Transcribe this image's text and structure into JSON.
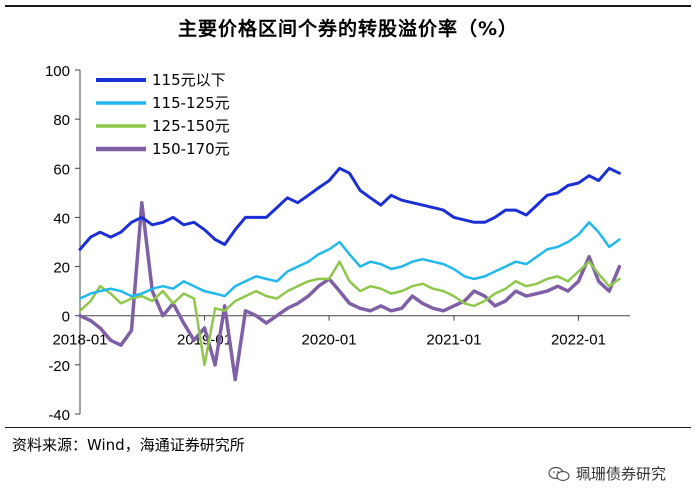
{
  "title": "主要价格区间个券的转股溢价率（%）",
  "source": "资料来源：Wind，海通证券研究所",
  "watermark": "珮珊债券研究",
  "chart_data": {
    "type": "line",
    "title": "主要价格区间个券的转股溢价率（%）",
    "xlabel": "",
    "ylabel": "",
    "ylim": [
      -40,
      100
    ],
    "yticks": [
      -40,
      -20,
      0,
      20,
      40,
      60,
      80,
      100
    ],
    "xlim": [
      "2018-01-01",
      "2022-06-01"
    ],
    "xtick_labels": [
      "2018-01",
      "2019-01",
      "2020-01",
      "2021-01",
      "2022-01"
    ],
    "xtick_dates": [
      "2018-01-01",
      "2019-01-01",
      "2020-01-01",
      "2021-01-01",
      "2022-01-01"
    ],
    "legend_position": "top-left",
    "grid": false,
    "series": [
      {
        "name": "115元以下",
        "color": "#1b2fd6",
        "width": 3,
        "x": [
          "2018-01-01",
          "2018-02-01",
          "2018-03-01",
          "2018-04-01",
          "2018-05-01",
          "2018-06-01",
          "2018-07-01",
          "2018-08-01",
          "2018-09-01",
          "2018-10-01",
          "2018-11-01",
          "2018-12-01",
          "2019-01-01",
          "2019-02-01",
          "2019-03-01",
          "2019-04-01",
          "2019-05-01",
          "2019-06-01",
          "2019-07-01",
          "2019-08-01",
          "2019-09-01",
          "2019-10-01",
          "2019-11-01",
          "2019-12-01",
          "2020-01-01",
          "2020-02-01",
          "2020-03-01",
          "2020-04-01",
          "2020-05-01",
          "2020-06-01",
          "2020-07-01",
          "2020-08-01",
          "2020-09-01",
          "2020-10-01",
          "2020-11-01",
          "2020-12-01",
          "2021-01-01",
          "2021-02-01",
          "2021-03-01",
          "2021-04-01",
          "2021-05-01",
          "2021-06-01",
          "2021-07-01",
          "2021-08-01",
          "2021-09-01",
          "2021-10-01",
          "2021-11-01",
          "2021-12-01",
          "2022-01-01",
          "2022-02-01",
          "2022-03-01",
          "2022-04-01",
          "2022-05-01"
        ],
        "y": [
          27,
          32,
          34,
          32,
          34,
          38,
          40,
          37,
          38,
          40,
          37,
          38,
          35,
          31,
          29,
          35,
          40,
          40,
          40,
          44,
          48,
          46,
          49,
          52,
          55,
          60,
          58,
          51,
          48,
          45,
          49,
          47,
          46,
          45,
          44,
          43,
          40,
          39,
          38,
          38,
          40,
          43,
          43,
          41,
          45,
          49,
          50,
          53,
          54,
          57,
          55,
          60,
          58
        ]
      },
      {
        "name": "115-125元",
        "color": "#21b8ee",
        "width": 2.5,
        "x": [
          "2018-01-01",
          "2018-02-01",
          "2018-03-01",
          "2018-04-01",
          "2018-05-01",
          "2018-06-01",
          "2018-07-01",
          "2018-08-01",
          "2018-09-01",
          "2018-10-01",
          "2018-11-01",
          "2018-12-01",
          "2019-01-01",
          "2019-02-01",
          "2019-03-01",
          "2019-04-01",
          "2019-05-01",
          "2019-06-01",
          "2019-07-01",
          "2019-08-01",
          "2019-09-01",
          "2019-10-01",
          "2019-11-01",
          "2019-12-01",
          "2020-01-01",
          "2020-02-01",
          "2020-03-01",
          "2020-04-01",
          "2020-05-01",
          "2020-06-01",
          "2020-07-01",
          "2020-08-01",
          "2020-09-01",
          "2020-10-01",
          "2020-11-01",
          "2020-12-01",
          "2021-01-01",
          "2021-02-01",
          "2021-03-01",
          "2021-04-01",
          "2021-05-01",
          "2021-06-01",
          "2021-07-01",
          "2021-08-01",
          "2021-09-01",
          "2021-10-01",
          "2021-11-01",
          "2021-12-01",
          "2022-01-01",
          "2022-02-01",
          "2022-03-01",
          "2022-04-01",
          "2022-05-01"
        ],
        "y": [
          7,
          9,
          10,
          11,
          10,
          8,
          9,
          11,
          12,
          11,
          14,
          12,
          10,
          9,
          8,
          12,
          14,
          16,
          15,
          14,
          18,
          20,
          22,
          25,
          27,
          30,
          25,
          20,
          22,
          21,
          19,
          20,
          22,
          23,
          22,
          21,
          19,
          16,
          15,
          16,
          18,
          20,
          22,
          21,
          24,
          27,
          28,
          30,
          33,
          38,
          34,
          28,
          31
        ]
      },
      {
        "name": "125-150元",
        "color": "#8ec74a",
        "width": 2.5,
        "x": [
          "2018-01-01",
          "2018-02-01",
          "2018-03-01",
          "2018-04-01",
          "2018-05-01",
          "2018-06-01",
          "2018-07-01",
          "2018-08-01",
          "2018-09-01",
          "2018-10-01",
          "2018-11-01",
          "2018-12-01",
          "2019-01-01",
          "2019-02-01",
          "2019-03-01",
          "2019-04-01",
          "2019-05-01",
          "2019-06-01",
          "2019-07-01",
          "2019-08-01",
          "2019-09-01",
          "2019-10-01",
          "2019-11-01",
          "2019-12-01",
          "2020-01-01",
          "2020-02-01",
          "2020-03-01",
          "2020-04-01",
          "2020-05-01",
          "2020-06-01",
          "2020-07-01",
          "2020-08-01",
          "2020-09-01",
          "2020-10-01",
          "2020-11-01",
          "2020-12-01",
          "2021-01-01",
          "2021-02-01",
          "2021-03-01",
          "2021-04-01",
          "2021-05-01",
          "2021-06-01",
          "2021-07-01",
          "2021-08-01",
          "2021-09-01",
          "2021-10-01",
          "2021-11-01",
          "2021-12-01",
          "2022-01-01",
          "2022-02-01",
          "2022-03-01",
          "2022-04-01",
          "2022-05-01"
        ],
        "y": [
          2,
          6,
          12,
          9,
          5,
          7,
          8,
          6,
          10,
          5,
          9,
          7,
          -20,
          3,
          2,
          6,
          8,
          10,
          8,
          7,
          10,
          12,
          14,
          15,
          15,
          22,
          14,
          10,
          12,
          11,
          9,
          10,
          12,
          13,
          11,
          10,
          8,
          5,
          4,
          6,
          9,
          11,
          14,
          12,
          13,
          15,
          16,
          14,
          18,
          22,
          17,
          12,
          15
        ]
      },
      {
        "name": "150-170元",
        "color": "#7f5fa6",
        "width": 3.5,
        "x": [
          "2018-01-01",
          "2018-02-01",
          "2018-03-01",
          "2018-04-01",
          "2018-05-01",
          "2018-06-01",
          "2018-07-01",
          "2018-08-01",
          "2018-09-01",
          "2018-10-01",
          "2018-11-01",
          "2018-12-01",
          "2019-01-01",
          "2019-02-01",
          "2019-03-01",
          "2019-04-01",
          "2019-05-01",
          "2019-06-01",
          "2019-07-01",
          "2019-08-01",
          "2019-09-01",
          "2019-10-01",
          "2019-11-01",
          "2019-12-01",
          "2020-01-01",
          "2020-02-01",
          "2020-03-01",
          "2020-04-01",
          "2020-05-01",
          "2020-06-01",
          "2020-07-01",
          "2020-08-01",
          "2020-09-01",
          "2020-10-01",
          "2020-11-01",
          "2020-12-01",
          "2021-01-01",
          "2021-02-01",
          "2021-03-01",
          "2021-04-01",
          "2021-05-01",
          "2021-06-01",
          "2021-07-01",
          "2021-08-01",
          "2021-09-01",
          "2021-10-01",
          "2021-11-01",
          "2021-12-01",
          "2022-01-01",
          "2022-02-01",
          "2022-03-01",
          "2022-04-01",
          "2022-05-01"
        ],
        "y": [
          0,
          -2,
          -5,
          -10,
          -12,
          -6,
          46,
          10,
          0,
          5,
          -3,
          -10,
          -5,
          -20,
          4,
          -26,
          2,
          0,
          -3,
          0,
          3,
          5,
          8,
          12,
          15,
          10,
          5,
          3,
          2,
          4,
          2,
          3,
          8,
          5,
          3,
          2,
          4,
          6,
          10,
          8,
          4,
          6,
          10,
          8,
          9,
          10,
          12,
          10,
          14,
          24,
          14,
          10,
          20
        ]
      }
    ]
  }
}
